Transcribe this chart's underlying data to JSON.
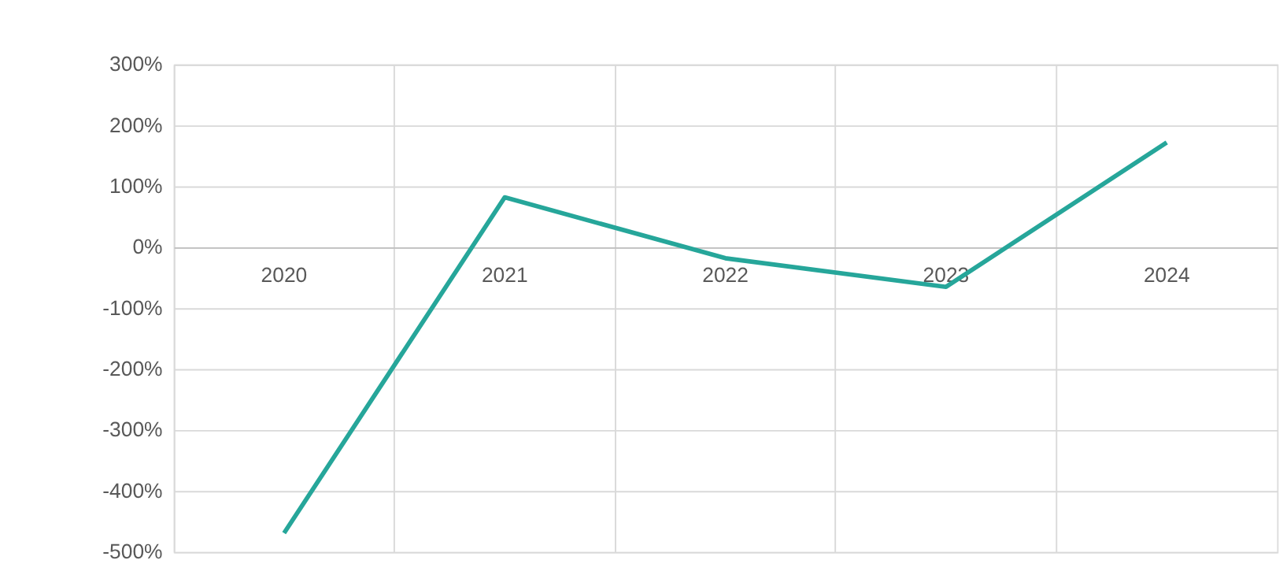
{
  "chart_data": {
    "type": "line",
    "categories": [
      "2020",
      "2021",
      "2022",
      "2023",
      "2024"
    ],
    "series": [
      {
        "color": "#26a69a",
        "values": [
          -469,
          82,
          -18,
          -65,
          172
        ]
      }
    ],
    "ylim": [
      -500,
      300
    ],
    "yticks": [
      {
        "value": -500,
        "label": "-500%"
      },
      {
        "value": -400,
        "label": "-400%"
      },
      {
        "value": -300,
        "label": "-300%"
      },
      {
        "value": -200,
        "label": "-200%"
      },
      {
        "value": -100,
        "label": "-100%"
      },
      {
        "value": 0,
        "label": "0%"
      },
      {
        "value": 100,
        "label": "100%"
      },
      {
        "value": 200,
        "label": "200%"
      },
      {
        "value": 300,
        "label": "300%"
      }
    ],
    "grid": true,
    "marker": "none",
    "line_style": "solid"
  }
}
